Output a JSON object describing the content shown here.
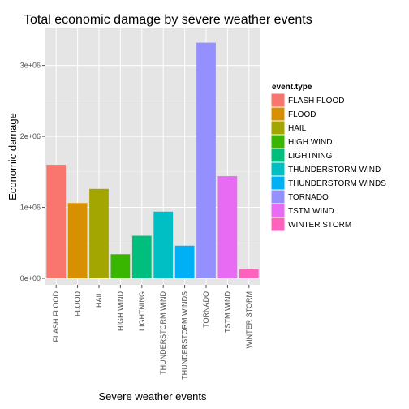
{
  "chart_data": {
    "type": "bar",
    "title": "Total economic damage by severe weather events",
    "xlabel": "Severe weather events",
    "ylabel": "Economic damage",
    "categories": [
      "FLASH FLOOD",
      "FLOOD",
      "HAIL",
      "HIGH WIND",
      "LIGHTNING",
      "THUNDERSTORM WIND",
      "THUNDERSTORM WINDS",
      "TORNADO",
      "TSTM WIND",
      "WINTER STORM"
    ],
    "values": [
      1600000,
      1060000,
      1260000,
      340000,
      600000,
      940000,
      460000,
      3320000,
      1440000,
      130000
    ],
    "colors": [
      "#F8766D",
      "#D89000",
      "#A3A500",
      "#39B600",
      "#00BF7D",
      "#00BFC4",
      "#00B0F6",
      "#9590FF",
      "#E76BF3",
      "#FF62BC"
    ],
    "ylim": [
      0,
      3430000
    ],
    "yticks": [
      0,
      1000000,
      2000000,
      3000000
    ],
    "ytick_labels": [
      "0e+00",
      "1e+06",
      "2e+06",
      "3e+06"
    ],
    "grid": true,
    "legend": {
      "title": "event.type",
      "placement": "right",
      "entries": [
        "FLASH FLOOD",
        "FLOOD",
        "HAIL",
        "HIGH WIND",
        "LIGHTNING",
        "THUNDERSTORM WIND",
        "THUNDERSTORM WINDS",
        "TORNADO",
        "TSTM WIND",
        "WINTER STORM"
      ]
    }
  }
}
